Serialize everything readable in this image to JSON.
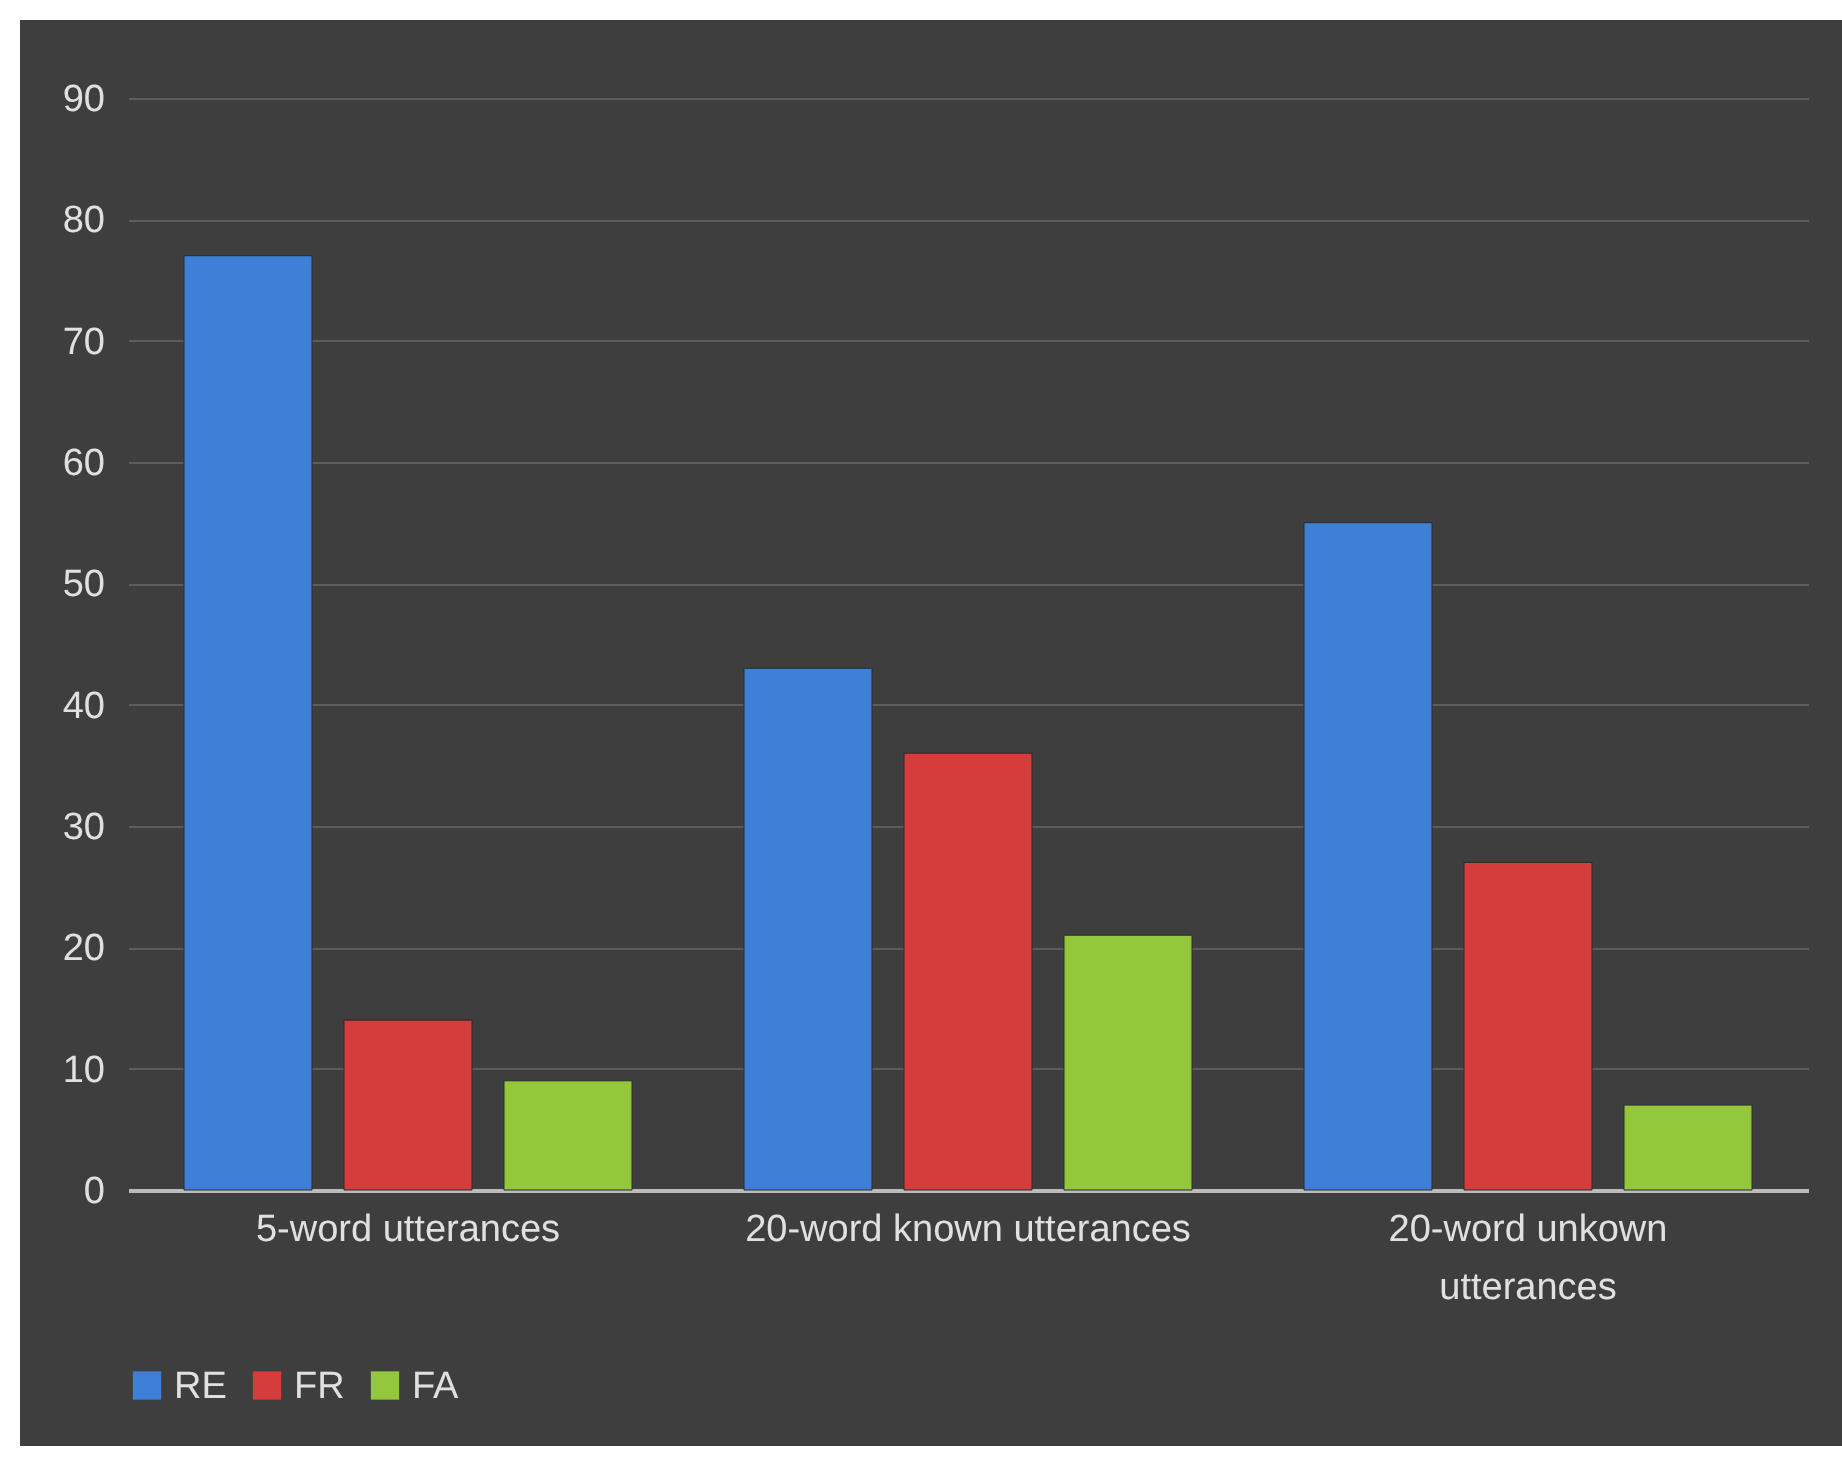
{
  "chart_data": {
    "type": "bar",
    "categories": [
      "5-word utterances",
      "20-word known utterances",
      "20-word unkown utterances"
    ],
    "series": [
      {
        "name": "RE",
        "color": "#3f7fd8",
        "values": [
          77,
          43,
          55
        ]
      },
      {
        "name": "FR",
        "color": "#d63c3c",
        "values": [
          14,
          36,
          27
        ]
      },
      {
        "name": "FA",
        "color": "#94c83c",
        "values": [
          9,
          21,
          7
        ]
      }
    ],
    "ylim": [
      0,
      90
    ],
    "yticks": [
      0,
      10,
      20,
      30,
      40,
      50,
      60,
      70,
      80,
      90
    ],
    "grid": "y",
    "legend": "bottom"
  }
}
